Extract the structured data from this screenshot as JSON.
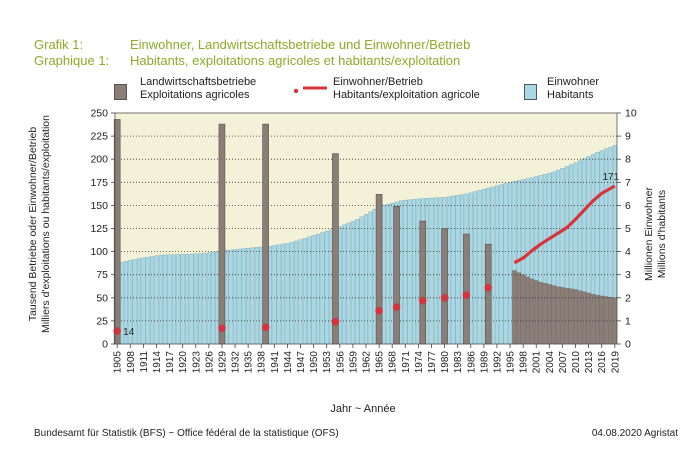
{
  "header": {
    "line1_label": "Grafik 1:",
    "line1_title": "Einwohner, Landwirtschaftsbetriebe und Einwohner/Betrieb",
    "line2_label": "Graphique 1:",
    "line2_title": "Habitants, exploitations agricoles et habitants/exploitation"
  },
  "legend": {
    "farms": [
      "Landwirtschaftsbetriebe",
      "Exploitations agricoles"
    ],
    "ratio": [
      "Einwohner/Betrieb",
      "Habitants/exploitation agricole"
    ],
    "population": [
      "Einwohner",
      "Habitants"
    ]
  },
  "colors": {
    "title": "#8cab2a",
    "population": "#a8d8e6",
    "farms": "#8b7d77",
    "ratio": "#d8343c",
    "plot_bg": "#f4f1d9"
  },
  "footer": {
    "source": "Bundesamt für Statistik (BFS)   ~   Office fédéral de la statistique (OFS)",
    "date": "04.08.2020 Agristat"
  },
  "chart_data": {
    "type": "bar",
    "xlabel": "Jahr  ~  Année",
    "ylabel_left": [
      "Tausend Betriebe oder Einwohner/Betrieb",
      "Milliers d'exploitations ou habitants/exploitation"
    ],
    "ylabel_right": [
      "Millionen Einwohner",
      "Millions d'habitants"
    ],
    "ylim_left": [
      0,
      250
    ],
    "ylim_right": [
      0,
      10
    ],
    "y_ticks_left": [
      0,
      25,
      50,
      75,
      100,
      125,
      150,
      175,
      200,
      225,
      250
    ],
    "y_ticks_right": [
      0,
      1,
      2,
      3,
      4,
      5,
      6,
      7,
      8,
      9,
      10
    ],
    "x_range": [
      1905,
      2019
    ],
    "x_ticks": [
      1905,
      1908,
      1911,
      1914,
      1917,
      1920,
      1923,
      1926,
      1929,
      1932,
      1935,
      1938,
      1941,
      1944,
      1947,
      1950,
      1953,
      1956,
      1959,
      1962,
      1965,
      1968,
      1971,
      1974,
      1977,
      1980,
      1983,
      1986,
      1989,
      1992,
      1995,
      1998,
      2001,
      2004,
      2007,
      2010,
      2013,
      2016,
      2019
    ],
    "grid": "dotted horizontal",
    "series": [
      {
        "name": "Einwohner / Habitants",
        "axis": "right",
        "unit": "Millionen Einwohner",
        "x": [
          1905,
          1910,
          1915,
          1920,
          1925,
          1930,
          1935,
          1940,
          1945,
          1950,
          1955,
          1960,
          1965,
          1970,
          1975,
          1980,
          1985,
          1990,
          1995,
          2000,
          2005,
          2010,
          2015,
          2019
        ],
        "values": [
          3.5,
          3.7,
          3.85,
          3.88,
          3.92,
          4.05,
          4.15,
          4.23,
          4.4,
          4.7,
          5.0,
          5.4,
          5.95,
          6.2,
          6.3,
          6.35,
          6.5,
          6.75,
          7.0,
          7.2,
          7.45,
          7.85,
          8.3,
          8.6
        ]
      },
      {
        "name": "Landwirtschaftsbetriebe / Exploitations agricoles",
        "axis": "left",
        "unit": "Tausend Betriebe",
        "census_x": [
          1905,
          1929,
          1939,
          1955,
          1965,
          1969,
          1975,
          1980,
          1985,
          1990
        ],
        "census_values": [
          243,
          238,
          238,
          206,
          162,
          149,
          133,
          125,
          119,
          108
        ],
        "annual_x": [
          1996,
          1998,
          2000,
          2002,
          2004,
          2006,
          2008,
          2010,
          2012,
          2014,
          2016,
          2019
        ],
        "annual_values": [
          79.5,
          75,
          70.5,
          67,
          64.5,
          62,
          60.5,
          59,
          56.5,
          54,
          52,
          50
        ]
      },
      {
        "name": "Einwohner/Betrieb / Habitants/exploitation agricole",
        "axis": "left",
        "unit": "Einwohner/Betrieb",
        "census_x": [
          1905,
          1929,
          1939,
          1955,
          1965,
          1969,
          1975,
          1980,
          1985,
          1990
        ],
        "census_values": [
          14,
          17,
          18,
          24,
          36,
          40,
          47,
          50,
          53,
          61
        ],
        "annual_x": [
          1996,
          1998,
          2000,
          2002,
          2004,
          2006,
          2008,
          2010,
          2012,
          2014,
          2016,
          2019
        ],
        "annual_values": [
          88,
          93,
          101,
          108,
          114,
          120,
          126,
          135,
          145,
          155,
          163,
          171
        ],
        "annotations": [
          {
            "x": 1905,
            "text": "14"
          },
          {
            "x": 2019,
            "text": "171"
          }
        ]
      }
    ]
  }
}
